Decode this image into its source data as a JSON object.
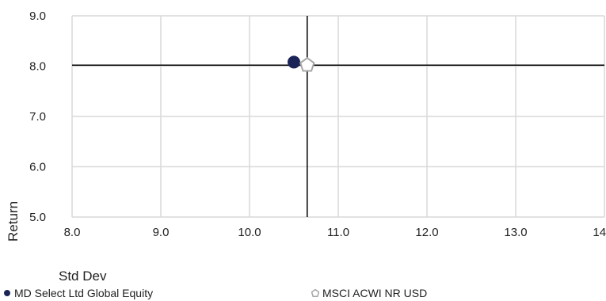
{
  "chart_data": {
    "type": "scatter",
    "xlabel": "Std Dev",
    "ylabel": "Return",
    "xlim": [
      8.0,
      14.0
    ],
    "ylim": [
      5.0,
      9.0
    ],
    "x_ticks": [
      "8.0",
      "9.0",
      "10.0",
      "11.0",
      "12.0",
      "13.0",
      "14.0"
    ],
    "y_ticks": [
      "5.0",
      "6.0",
      "7.0",
      "8.0",
      "9.0"
    ],
    "grid": "vertical and horizontal",
    "reference_lines": {
      "x": 10.65,
      "y": 8.02
    },
    "series": [
      {
        "name": "MD Select Ltd Global Equity",
        "marker": "circle",
        "color": "#1a2456",
        "points": [
          {
            "x": 10.5,
            "y": 8.08
          }
        ]
      },
      {
        "name": "MSCI ACWI NR USD",
        "marker": "pentagon",
        "color": "#a6a6a6",
        "points": [
          {
            "x": 10.65,
            "y": 8.02
          }
        ]
      }
    ],
    "legend_position": "bottom"
  }
}
